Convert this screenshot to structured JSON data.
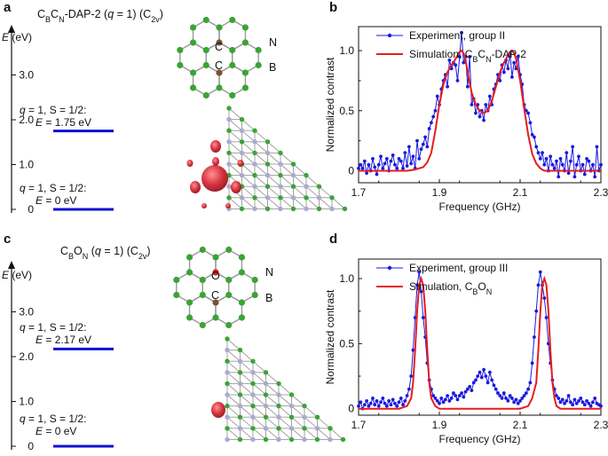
{
  "panels": {
    "a": {
      "label": "a",
      "title": {
        "main": "C",
        "s1": "B",
        "m2": "C",
        "s2": "N",
        "rest": "-DAP-2 (",
        "q": "q",
        "rest2": " = 1) (C",
        "sub": "2v",
        "close": ")"
      },
      "ylabel": {
        "v": "E",
        "unit": " (eV)"
      },
      "yticks": [
        "0",
        "1.0",
        "2.0",
        "3.0"
      ],
      "levels": [
        {
          "line1": ", S = 1/2:",
          "line2": " = 1.75 eV",
          "value": 1.75
        },
        {
          "line1": ", S = 1/2:",
          "line2": " = 0 eV",
          "value": 0
        }
      ],
      "atom_labels": [
        "C",
        "C",
        "N",
        "B"
      ]
    },
    "c": {
      "label": "c",
      "title": {
        "main": "C",
        "s1": "B",
        "m2": "O",
        "s2": "N",
        "rest": " (",
        "q": "q",
        "rest2": " = 1) (C",
        "sub": "2v",
        "close": ")"
      },
      "ylabel": {
        "v": "E",
        "unit": " (eV)"
      },
      "yticks": [
        "0",
        "1.0",
        "2.0",
        "3.0"
      ],
      "levels": [
        {
          "line1": ", S = 1/2:",
          "line2": " = 2.17 eV",
          "value": 2.17
        },
        {
          "line1": ", S = 1/2:",
          "line2": " = 0 eV",
          "value": 0
        }
      ],
      "atom_labels": [
        "O",
        "C",
        "N",
        "B"
      ]
    },
    "b": {
      "label": "b"
    },
    "d": {
      "label": "d"
    }
  },
  "colors": {
    "experiment": "#1a1ae0",
    "simulation": "#e81c1c",
    "level": "#1010d0",
    "boron": "#3aa435",
    "nitrogen": "#a9a9cf",
    "carbon": "#7a5230",
    "oxygen": "#d81e1e",
    "bond": "#9a9a9a",
    "spin_density": "#d42a36"
  },
  "chart_data": [
    {
      "type": "line",
      "panel": "b",
      "xlabel": "Frequency (GHz)",
      "ylabel": "Normalized contrast",
      "xlim": [
        1.7,
        2.3
      ],
      "ylim": [
        -0.1,
        1.2
      ],
      "xticks": [
        "1.7",
        "1.9",
        "2.1",
        "2.3"
      ],
      "yticks": [
        "0",
        "0.5",
        "1.0"
      ],
      "legend_placement": "top-right",
      "series": [
        {
          "name": "Experiment, group II",
          "name_sub": "",
          "name_tail": "",
          "style": "line-markers",
          "x": [
            1.7,
            1.705,
            1.71,
            1.715,
            1.72,
            1.725,
            1.73,
            1.735,
            1.74,
            1.745,
            1.75,
            1.755,
            1.76,
            1.765,
            1.77,
            1.775,
            1.78,
            1.785,
            1.79,
            1.795,
            1.8,
            1.805,
            1.81,
            1.815,
            1.82,
            1.825,
            1.83,
            1.835,
            1.84,
            1.845,
            1.85,
            1.855,
            1.86,
            1.865,
            1.87,
            1.875,
            1.88,
            1.885,
            1.89,
            1.895,
            1.9,
            1.905,
            1.91,
            1.915,
            1.92,
            1.925,
            1.93,
            1.935,
            1.94,
            1.945,
            1.95,
            1.955,
            1.96,
            1.965,
            1.97,
            1.975,
            1.98,
            1.985,
            1.99,
            1.995,
            2.0,
            2.005,
            2.01,
            2.015,
            2.02,
            2.025,
            2.03,
            2.035,
            2.04,
            2.045,
            2.05,
            2.055,
            2.06,
            2.065,
            2.07,
            2.075,
            2.08,
            2.085,
            2.09,
            2.095,
            2.1,
            2.105,
            2.11,
            2.115,
            2.12,
            2.125,
            2.13,
            2.135,
            2.14,
            2.145,
            2.15,
            2.155,
            2.16,
            2.165,
            2.17,
            2.175,
            2.18,
            2.185,
            2.19,
            2.195,
            2.2,
            2.205,
            2.21,
            2.215,
            2.22,
            2.225,
            2.23,
            2.235,
            2.24,
            2.245,
            2.25,
            2.255,
            2.26,
            2.265,
            2.27,
            2.275,
            2.28,
            2.285,
            2.29,
            2.295,
            2.3
          ],
          "y": [
            0.02,
            0.05,
            0.02,
            0.08,
            -0.02,
            0.05,
            0.0,
            0.1,
            0.03,
            -0.03,
            0.05,
            0.12,
            0.02,
            0.06,
            0.1,
            0.0,
            0.08,
            0.13,
            0.05,
            0.02,
            0.1,
            0.08,
            0.02,
            0.15,
            0.04,
            0.2,
            0.06,
            0.12,
            0.02,
            0.25,
            0.1,
            0.18,
            0.22,
            0.28,
            0.2,
            0.35,
            0.4,
            0.45,
            0.5,
            0.62,
            0.55,
            0.68,
            0.75,
            0.8,
            0.7,
            0.92,
            0.85,
            0.9,
            0.88,
            0.75,
            0.95,
            1.15,
            0.9,
            0.95,
            0.7,
            0.95,
            0.55,
            0.6,
            0.48,
            0.55,
            0.45,
            0.5,
            0.42,
            0.55,
            0.5,
            0.62,
            0.55,
            0.68,
            0.72,
            0.8,
            0.75,
            0.88,
            0.82,
            0.92,
            0.85,
            0.98,
            0.78,
            0.9,
            0.85,
            0.95,
            0.8,
            0.72,
            0.55,
            0.5,
            0.48,
            0.4,
            0.3,
            0.28,
            0.2,
            0.15,
            0.1,
            0.15,
            0.05,
            0.1,
            0.0,
            0.12,
            0.05,
            0.02,
            0.08,
            -0.05,
            0.1,
            0.05,
            0.0,
            0.15,
            -0.02,
            0.08,
            0.2,
            -0.05,
            0.05,
            0.12,
            0.0,
            0.05,
            -0.03,
            0.1,
            0.08,
            0.0,
            0.05,
            -0.05,
            0.2,
            0.0,
            0.05
          ]
        },
        {
          "name": "Simulation, C",
          "name_sub": "B",
          "name_mid": "C",
          "name_sub2": "N",
          "name_tail": "-DAP-2",
          "style": "line",
          "x": [
            1.7,
            1.76,
            1.8,
            1.82,
            1.84,
            1.86,
            1.87,
            1.88,
            1.89,
            1.9,
            1.91,
            1.92,
            1.93,
            1.94,
            1.95,
            1.955,
            1.96,
            1.965,
            1.97,
            1.98,
            1.99,
            2.0,
            2.01,
            2.02,
            2.03,
            2.04,
            2.05,
            2.06,
            2.07,
            2.075,
            2.08,
            2.085,
            2.09,
            2.1,
            2.11,
            2.12,
            2.13,
            2.14,
            2.15,
            2.16,
            2.2,
            2.3
          ],
          "y": [
            0,
            0,
            0,
            0,
            0.01,
            0.03,
            0.07,
            0.15,
            0.33,
            0.55,
            0.72,
            0.82,
            0.88,
            0.93,
            0.99,
            1.0,
            0.98,
            0.92,
            0.82,
            0.65,
            0.55,
            0.5,
            0.48,
            0.5,
            0.58,
            0.7,
            0.82,
            0.9,
            0.96,
            0.99,
            1.0,
            0.98,
            0.93,
            0.75,
            0.52,
            0.3,
            0.14,
            0.06,
            0.02,
            0.0,
            0,
            0
          ]
        }
      ]
    },
    {
      "type": "line",
      "panel": "d",
      "xlabel": "Frequency (GHz)",
      "ylabel": "Normalized contrast",
      "xlim": [
        1.7,
        2.3
      ],
      "ylim": [
        -0.05,
        1.15
      ],
      "xticks": [
        "1.7",
        "1.9",
        "2.1",
        "2.3"
      ],
      "yticks": [
        "0",
        "0.5",
        "1.0"
      ],
      "legend_placement": "top-right",
      "series": [
        {
          "name": "Experiment, group III",
          "name_sub": "",
          "name_tail": "",
          "style": "line-markers",
          "x": [
            1.7,
            1.705,
            1.71,
            1.715,
            1.72,
            1.725,
            1.73,
            1.735,
            1.74,
            1.745,
            1.75,
            1.755,
            1.76,
            1.765,
            1.77,
            1.775,
            1.78,
            1.785,
            1.79,
            1.795,
            1.8,
            1.805,
            1.81,
            1.815,
            1.82,
            1.825,
            1.83,
            1.835,
            1.84,
            1.845,
            1.85,
            1.855,
            1.86,
            1.865,
            1.87,
            1.875,
            1.88,
            1.885,
            1.89,
            1.895,
            1.9,
            1.905,
            1.91,
            1.915,
            1.92,
            1.925,
            1.93,
            1.935,
            1.94,
            1.945,
            1.95,
            1.955,
            1.96,
            1.965,
            1.97,
            1.975,
            1.98,
            1.985,
            1.99,
            1.995,
            2.0,
            2.005,
            2.01,
            2.015,
            2.02,
            2.025,
            2.03,
            2.035,
            2.04,
            2.045,
            2.05,
            2.055,
            2.06,
            2.065,
            2.07,
            2.075,
            2.08,
            2.085,
            2.09,
            2.095,
            2.1,
            2.105,
            2.11,
            2.115,
            2.12,
            2.125,
            2.13,
            2.135,
            2.14,
            2.145,
            2.15,
            2.155,
            2.16,
            2.165,
            2.17,
            2.175,
            2.18,
            2.185,
            2.19,
            2.195,
            2.2,
            2.205,
            2.21,
            2.215,
            2.22,
            2.225,
            2.23,
            2.235,
            2.24,
            2.245,
            2.25,
            2.255,
            2.26,
            2.265,
            2.27,
            2.275,
            2.28,
            2.285,
            2.29,
            2.295,
            2.3
          ],
          "y": [
            0.02,
            0.05,
            0.0,
            0.03,
            0.06,
            0.02,
            0.04,
            0.08,
            0.03,
            0.06,
            0.02,
            0.05,
            0.08,
            0.04,
            0.02,
            0.06,
            0.03,
            0.07,
            0.04,
            0.02,
            0.05,
            0.08,
            0.03,
            0.06,
            0.1,
            0.15,
            0.25,
            0.45,
            0.7,
            0.95,
            1.05,
            0.9,
            0.7,
            0.55,
            0.35,
            0.22,
            0.15,
            0.1,
            0.08,
            0.06,
            0.04,
            0.08,
            0.05,
            0.07,
            0.1,
            0.06,
            0.08,
            0.12,
            0.1,
            0.07,
            0.1,
            0.12,
            0.09,
            0.13,
            0.15,
            0.17,
            0.14,
            0.2,
            0.22,
            0.25,
            0.28,
            0.24,
            0.3,
            0.25,
            0.2,
            0.28,
            0.22,
            0.18,
            0.15,
            0.12,
            0.1,
            0.08,
            0.12,
            0.08,
            0.06,
            0.1,
            0.08,
            0.05,
            0.07,
            0.04,
            0.06,
            0.08,
            0.1,
            0.12,
            0.15,
            0.2,
            0.35,
            0.55,
            0.75,
            0.95,
            1.05,
            0.95,
            0.85,
            0.7,
            0.5,
            0.35,
            0.22,
            0.15,
            0.1,
            0.08,
            0.05,
            0.07,
            0.04,
            0.06,
            0.1,
            0.05,
            0.03,
            0.07,
            0.04,
            0.06,
            0.08,
            0.05,
            0.03,
            0.06,
            0.04,
            0.02,
            0.05,
            0.08,
            0.04,
            0.03,
            0.02
          ]
        },
        {
          "name": "Simulation, C",
          "name_sub": "B",
          "name_mid": "O",
          "name_sub2": "N",
          "name_tail": "",
          "style": "line",
          "x": [
            1.7,
            1.8,
            1.82,
            1.83,
            1.835,
            1.84,
            1.845,
            1.85,
            1.855,
            1.86,
            1.865,
            1.87,
            1.875,
            1.88,
            1.89,
            1.9,
            2.0,
            2.1,
            2.12,
            2.13,
            2.14,
            2.145,
            2.15,
            2.155,
            2.16,
            2.165,
            2.17,
            2.175,
            2.18,
            2.185,
            2.19,
            2.2,
            2.22,
            2.3
          ],
          "y": [
            0,
            0,
            0.02,
            0.08,
            0.2,
            0.45,
            0.75,
            0.95,
            1.0,
            0.95,
            0.75,
            0.45,
            0.2,
            0.08,
            0.02,
            0,
            0,
            0,
            0.02,
            0.08,
            0.2,
            0.45,
            0.75,
            0.95,
            1.0,
            0.95,
            0.75,
            0.45,
            0.2,
            0.08,
            0.02,
            0,
            0,
            0
          ]
        }
      ]
    }
  ]
}
